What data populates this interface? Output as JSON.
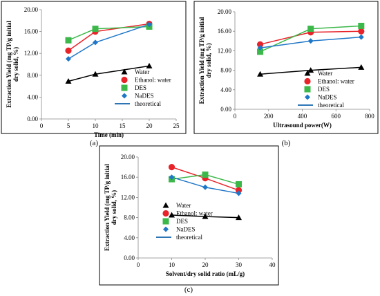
{
  "chart_data": [
    {
      "type": "scatter",
      "caption": "(a)",
      "xlabel": "Time (min)",
      "ylabel": "Extraction Yield (mg TP/g initial dry solid, %)",
      "xlim": [
        0,
        25
      ],
      "ylim": [
        0,
        20
      ],
      "xticks": [
        "0",
        "5",
        "10",
        "15",
        "20",
        "25"
      ],
      "yticks": [
        "0.00",
        "4.00",
        "8.00",
        "12.00",
        "16.00",
        "20.00"
      ],
      "legend_position": "right",
      "legend": [
        "Water",
        "Ethanol: water",
        "DES",
        "NaDES",
        "theoretical"
      ],
      "series": [
        {
          "name": "Water",
          "x": [
            5,
            10,
            20
          ],
          "y": [
            6.9,
            8.2,
            9.7
          ]
        },
        {
          "name": "Ethanol: water",
          "x": [
            5,
            10,
            20
          ],
          "y": [
            12.5,
            16.0,
            17.4
          ]
        },
        {
          "name": "DES",
          "x": [
            5,
            10,
            20
          ],
          "y": [
            14.4,
            16.5,
            16.9
          ]
        },
        {
          "name": "NaDES",
          "x": [
            5,
            10,
            20
          ],
          "y": [
            11.0,
            14.0,
            17.3
          ]
        }
      ]
    },
    {
      "type": "scatter",
      "caption": "(b)",
      "xlabel": "Ultrasound power(W)",
      "ylabel": "Extraction Yield (mg TP/g initial dry solid, %)",
      "xlim": [
        0,
        800
      ],
      "ylim": [
        0,
        20
      ],
      "xticks": [
        "0",
        "200",
        "400",
        "600",
        "800"
      ],
      "yticks": [
        "0.00",
        "4.00",
        "8.00",
        "12.00",
        "16.00",
        "20.00"
      ],
      "legend_position": "right",
      "legend": [
        "Water",
        "Ethanol: water",
        "DES",
        "NaDES",
        "theoretical"
      ],
      "series": [
        {
          "name": "Water",
          "x": [
            150,
            450,
            750
          ],
          "y": [
            7.2,
            8.0,
            8.6
          ]
        },
        {
          "name": "Ethanol: water",
          "x": [
            150,
            450,
            750
          ],
          "y": [
            13.3,
            15.8,
            16.0
          ]
        },
        {
          "name": "DES",
          "x": [
            150,
            450,
            750
          ],
          "y": [
            11.8,
            16.5,
            17.1
          ]
        },
        {
          "name": "NaDES",
          "x": [
            150,
            450,
            750
          ],
          "y": [
            12.6,
            14.0,
            14.8
          ]
        }
      ]
    },
    {
      "type": "scatter",
      "caption": "(c)",
      "xlabel": "Solvent/dry solid ratio (mL/g)",
      "ylabel": "Extraction Yield (mg TP/g initial dry solid, %)",
      "xlim": [
        0,
        40
      ],
      "ylim": [
        0,
        20
      ],
      "xticks": [
        "0",
        "10",
        "20",
        "30",
        "40"
      ],
      "yticks": [
        "0.00",
        "4.00",
        "8.00",
        "12.00",
        "16.00",
        "20.00"
      ],
      "legend_position": "right",
      "legend": [
        "Water",
        "Ethanol: water",
        "DES",
        "NaDES",
        "theoretical"
      ],
      "series": [
        {
          "name": "Water",
          "x": [
            10,
            20,
            30
          ],
          "y": [
            8.5,
            8.2,
            8.0
          ]
        },
        {
          "name": "Ethanol: water",
          "x": [
            10,
            20,
            30
          ],
          "y": [
            18.0,
            15.8,
            13.4
          ]
        },
        {
          "name": "DES",
          "x": [
            10,
            20,
            30
          ],
          "y": [
            15.6,
            16.5,
            14.6
          ]
        },
        {
          "name": "NaDES",
          "x": [
            10,
            20,
            30
          ],
          "y": [
            16.0,
            14.0,
            12.8
          ]
        }
      ]
    }
  ],
  "series_colors": {
    "Water": "#000000",
    "Ethanol: water": "#e8232a",
    "DES": "#3cb84a",
    "NaDES": "#1f77c7",
    "theoretical": "#2e75b6"
  },
  "series_markers": {
    "Water": "triangle",
    "Ethanol: water": "circle",
    "DES": "square",
    "NaDES": "diamond",
    "theoretical": "line"
  }
}
